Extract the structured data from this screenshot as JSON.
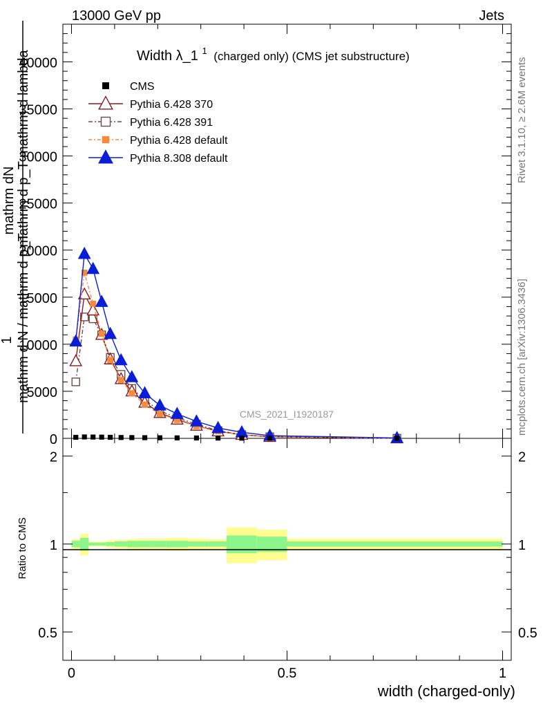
{
  "header": {
    "left": "13000 GeV pp",
    "right": "Jets"
  },
  "side_labels": {
    "rivet": "Rivet 3.1.10, ≥ 2.6M events",
    "mcplots": "mcplots.cern.ch [arXiv:1306.3436]"
  },
  "watermark": "CMS_2021_I1920187",
  "chart_data": {
    "type": "line",
    "title": "Width λ_1",
    "title_superscript": "1",
    "subtitle": "(charged only) (CMS jet substructure)",
    "ylabel_lines": [
      "mathrm dN",
      "mathrm d p_T mathrm d lambda",
      "1",
      "mathrm d N / mathrm d p_T"
    ],
    "xlabel": "width (charged-only)",
    "ratio_ylabel": "Ratio to CMS",
    "xlim": [
      -0.02,
      1.02
    ],
    "ylim": [
      0,
      44000
    ],
    "ratio_ylim": [
      0.4,
      2.3
    ],
    "x_ticks": [
      {
        "v": 0,
        "label": "0"
      },
      {
        "v": 0.5,
        "label": "0.5"
      },
      {
        "v": 1,
        "label": "1"
      }
    ],
    "y_ticks": [
      {
        "v": 0,
        "label": "0"
      },
      {
        "v": 5000,
        "label": "5000"
      },
      {
        "v": 10000,
        "label": "10000"
      },
      {
        "v": 15000,
        "label": "15000"
      },
      {
        "v": 20000,
        "label": "20000"
      },
      {
        "v": 25000,
        "label": "25000"
      },
      {
        "v": 30000,
        "label": "30000"
      },
      {
        "v": 35000,
        "label": "35000"
      },
      {
        "v": 40000,
        "label": "40000"
      }
    ],
    "ratio_ticks": [
      {
        "v": 0.5,
        "label": "0.5"
      },
      {
        "v": 1,
        "label": "1"
      },
      {
        "v": 2,
        "label": "2"
      }
    ],
    "x": [
      0.01,
      0.03,
      0.05,
      0.07,
      0.09,
      0.115,
      0.14,
      0.17,
      0.205,
      0.245,
      0.29,
      0.34,
      0.395,
      0.46,
      0.755
    ],
    "bin_edges": [
      0,
      0.02,
      0.04,
      0.06,
      0.08,
      0.1,
      0.13,
      0.15,
      0.19,
      0.22,
      0.27,
      0.31,
      0.36,
      0.43,
      0.5,
      1.0
    ],
    "series": [
      {
        "name": "CMS",
        "key": "cms",
        "color": "#000000",
        "marker": "square-filled",
        "dash": "",
        "values": [
          110,
          150,
          140,
          130,
          110,
          90,
          80,
          70,
          60,
          50,
          40,
          30,
          20,
          10,
          3
        ]
      },
      {
        "name": "Pythia 6.428 370",
        "key": "p370",
        "color": "#8b1a1a",
        "marker": "triangle-open",
        "dash": "",
        "values": [
          8200,
          15300,
          13600,
          11000,
          8400,
          6300,
          5000,
          3800,
          2700,
          2000,
          1350,
          750,
          380,
          160,
          15
        ]
      },
      {
        "name": "Pythia 6.428 391",
        "key": "p391",
        "color": "#6b4c4c",
        "marker": "square-open",
        "dash": "6,3,2,3",
        "values": [
          6000,
          12900,
          12700,
          11000,
          8600,
          6800,
          5300,
          4100,
          2900,
          2200,
          1500,
          820,
          400,
          170,
          15
        ]
      },
      {
        "name": "Pythia 6.428 default",
        "key": "pdef",
        "color": "#f58a3c",
        "marker": "square-filled-small",
        "dash": "5,3,2,3",
        "values": [
          10500,
          17600,
          14300,
          11100,
          8300,
          6200,
          4800,
          3600,
          2600,
          1950,
          1300,
          750,
          390,
          160,
          15
        ]
      },
      {
        "name": "Pythia 8.308 default",
        "key": "p8",
        "color": "#0a1ed6",
        "marker": "triangle-filled",
        "dash": "",
        "values": [
          10300,
          19600,
          18000,
          14500,
          11100,
          8300,
          6500,
          4800,
          3500,
          2600,
          1800,
          1100,
          650,
          290,
          40
        ]
      }
    ],
    "ratio_bands": {
      "bin_edges": [
        0,
        0.02,
        0.04,
        0.06,
        0.08,
        0.1,
        0.13,
        0.15,
        0.19,
        0.22,
        0.27,
        0.31,
        0.36,
        0.43,
        0.5,
        1.0
      ],
      "yellow_halfwidth": [
        0.04,
        0.085,
        0.02,
        0.02,
        0.03,
        0.035,
        0.04,
        0.045,
        0.045,
        0.05,
        0.045,
        0.04,
        0.14,
        0.12,
        0.045
      ],
      "green_halfwidth": [
        0.025,
        0.05,
        0.012,
        0.012,
        0.015,
        0.02,
        0.025,
        0.025,
        0.025,
        0.025,
        0.02,
        0.02,
        0.07,
        0.06,
        0.02
      ],
      "yellow_color": "#fdfd90",
      "green_color": "#8cf58c"
    },
    "legend_placement": "top-left"
  }
}
